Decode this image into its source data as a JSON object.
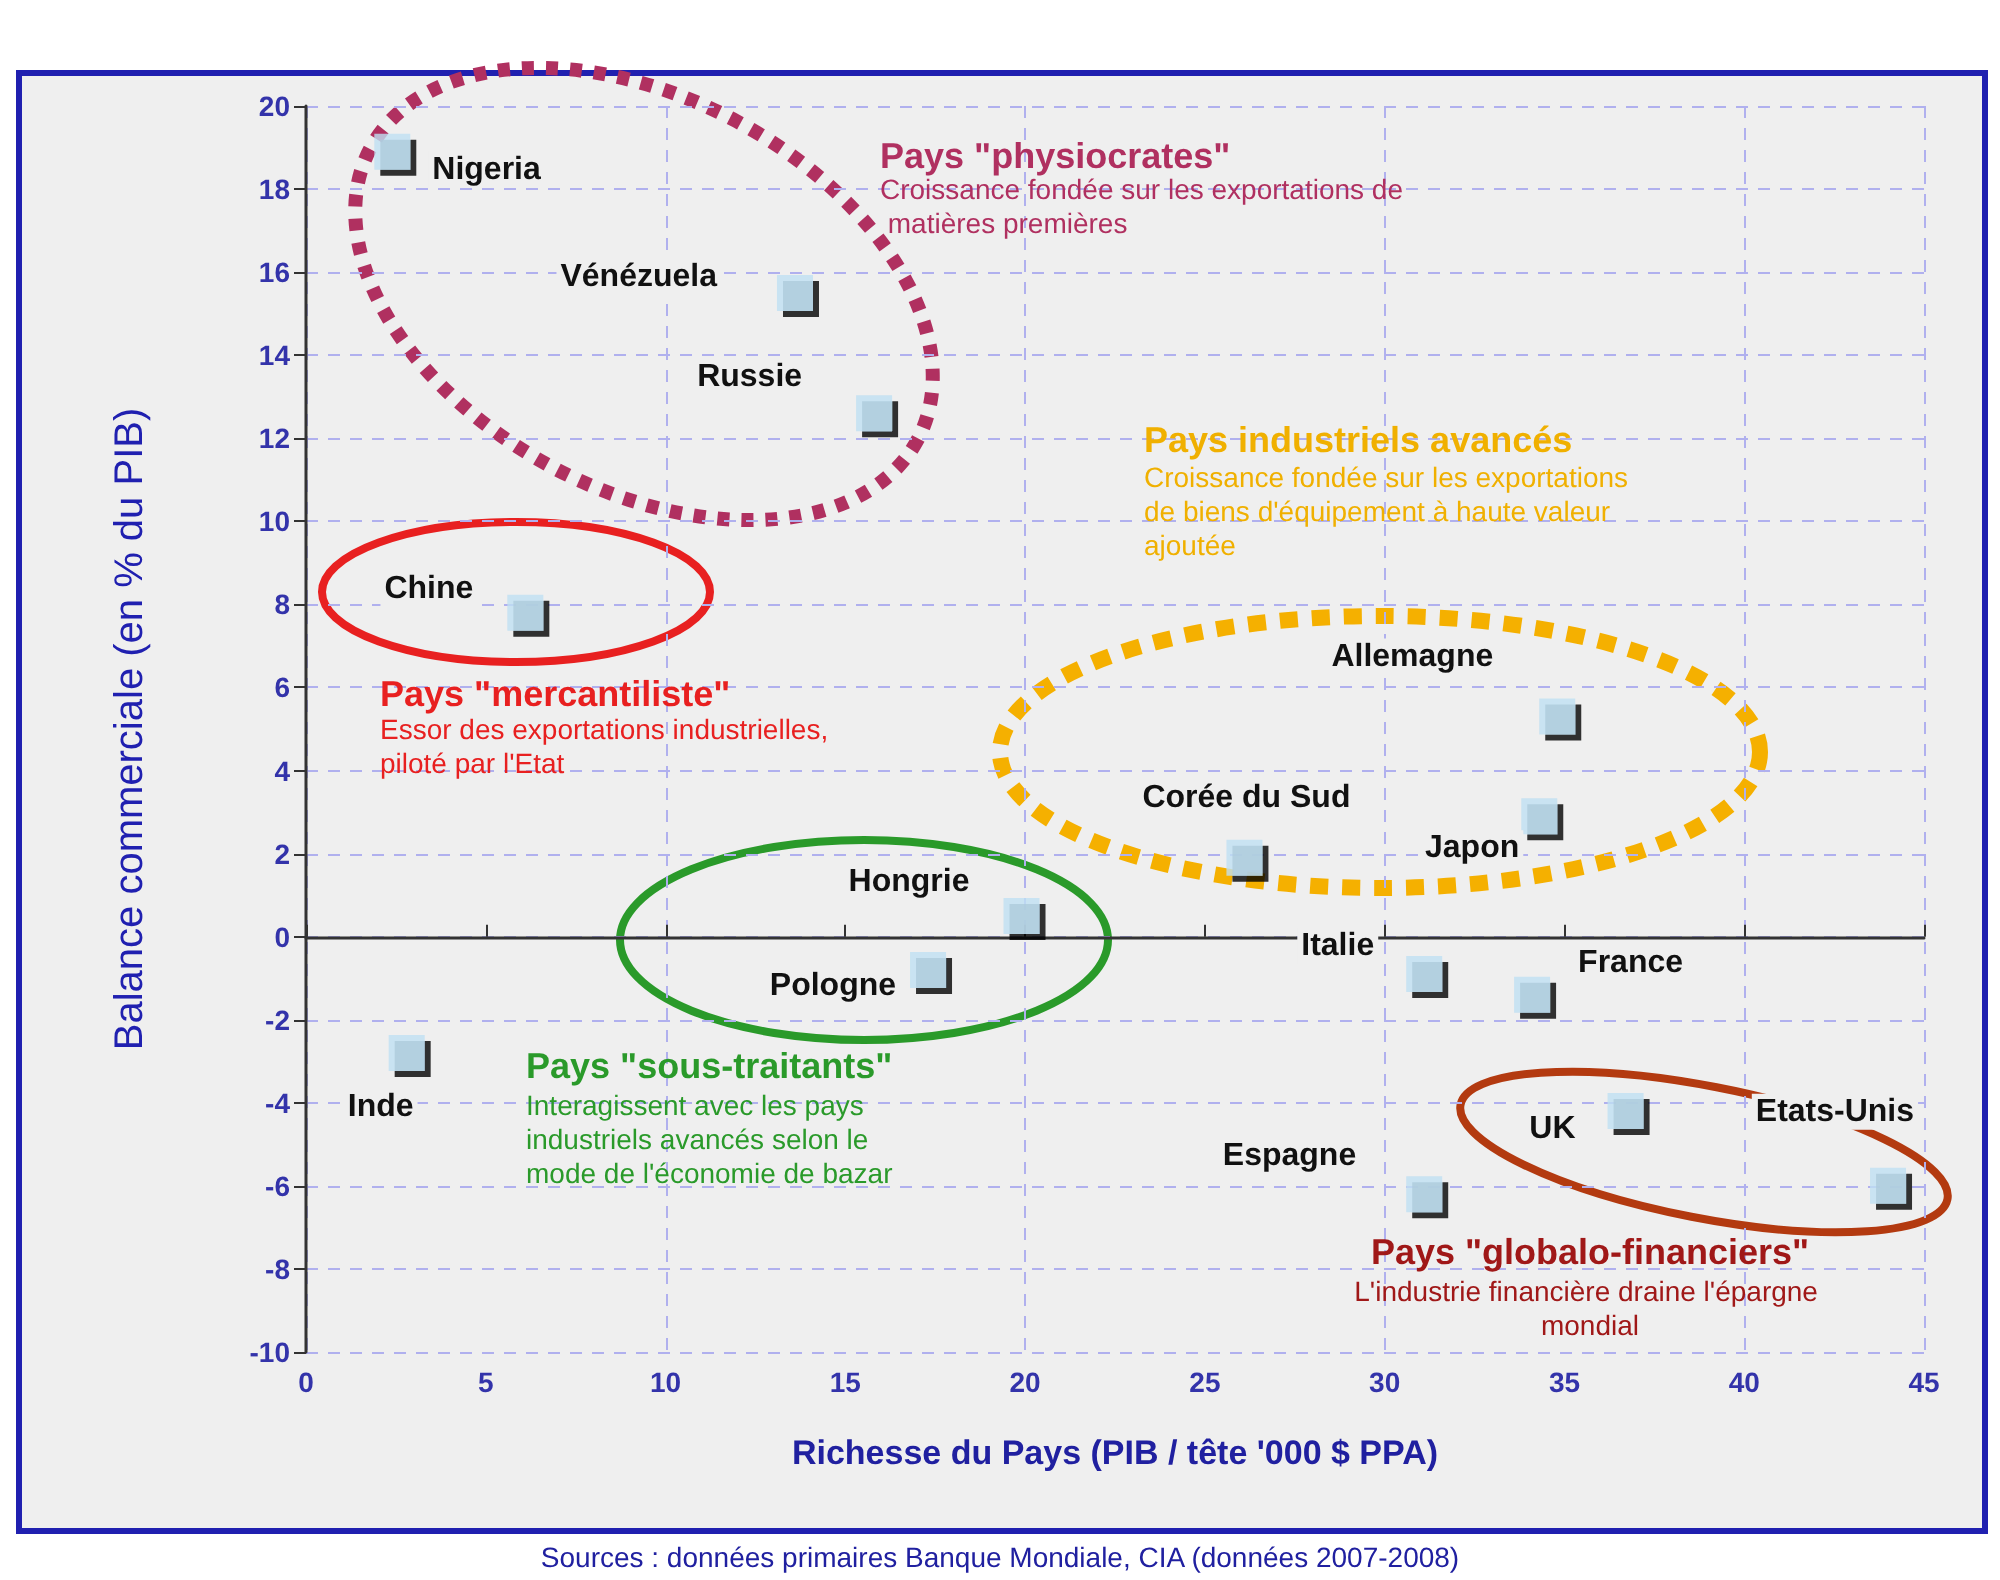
{
  "chart_data": {
    "type": "scatter",
    "xlabel": "Richesse du Pays (PIB / tête '000 $ PPA)",
    "ylabel": "Balance commerciale (en % du PIB)",
    "x": [
      2.4,
      13.6,
      15.8,
      6.1,
      34.8,
      34.3,
      26.1,
      19.9,
      17.3,
      2.8,
      31.1,
      34.1,
      36.7,
      44.0,
      31.1
    ],
    "values": [
      18.9,
      15.5,
      12.6,
      7.8,
      5.3,
      2.9,
      1.9,
      0.5,
      -0.8,
      -2.8,
      -0.9,
      -1.4,
      -4.2,
      -6.0,
      -6.2
    ],
    "color": "#bfe0f2",
    "marker": "square",
    "xlim": [
      0,
      45
    ],
    "xticks": [
      0,
      5,
      10,
      15,
      20,
      25,
      30,
      35,
      40,
      45
    ],
    "ylim": [
      -10,
      20
    ],
    "yticks": [
      -10,
      -8,
      -6,
      -4,
      -2,
      0,
      2,
      4,
      6,
      8,
      10,
      12,
      14,
      16,
      18,
      20
    ],
    "grid": true,
    "annotations": [
      {
        "text": "Nigeria",
        "x": 2.4,
        "y": 18.9
      },
      {
        "text": "Vénézuela",
        "x": 13.6,
        "y": 15.5
      },
      {
        "text": "Russie",
        "x": 15.8,
        "y": 12.6
      },
      {
        "text": "Chine",
        "x": 6.1,
        "y": 7.8
      },
      {
        "text": "Allemagne",
        "x": 34.8,
        "y": 5.3
      },
      {
        "text": "Japon",
        "x": 34.3,
        "y": 2.9
      },
      {
        "text": "Corée du Sud",
        "x": 26.1,
        "y": 1.9
      },
      {
        "text": "Hongrie",
        "x": 19.9,
        "y": 0.5
      },
      {
        "text": "Pologne",
        "x": 17.3,
        "y": -0.8
      },
      {
        "text": "Inde",
        "x": 2.8,
        "y": -2.8
      },
      {
        "text": "Italie",
        "x": 31.1,
        "y": -0.9
      },
      {
        "text": "France",
        "x": 34.1,
        "y": -1.4
      },
      {
        "text": "UK",
        "x": 36.7,
        "y": -4.2
      },
      {
        "text": "Etats-Unis",
        "x": 44.0,
        "y": -6.0
      },
      {
        "text": "Espagne",
        "x": 31.1,
        "y": -6.2
      },
      "Pays \"physiocrates\"",
      "Croissance fondée sur les exportations de matières premières",
      "Pays industriels avancés",
      "Croissance fondée sur les exportations de biens d'équipement à haute valeur ajoutée",
      "Pays \"mercantiliste\"",
      "Essor des exportations industrielles, piloté par l'Etat",
      "Pays \"sous-traitants\"",
      "Interagissent avec les pays industriels avancés selon le mode de l'économie de bazar",
      "Pays \"globalo-financiers\"",
      "L'industrie financière draine l'épargne mondial",
      "Sources : données primaires Banque Mondiale, CIA (données 2007-2008)"
    ]
  }
}
